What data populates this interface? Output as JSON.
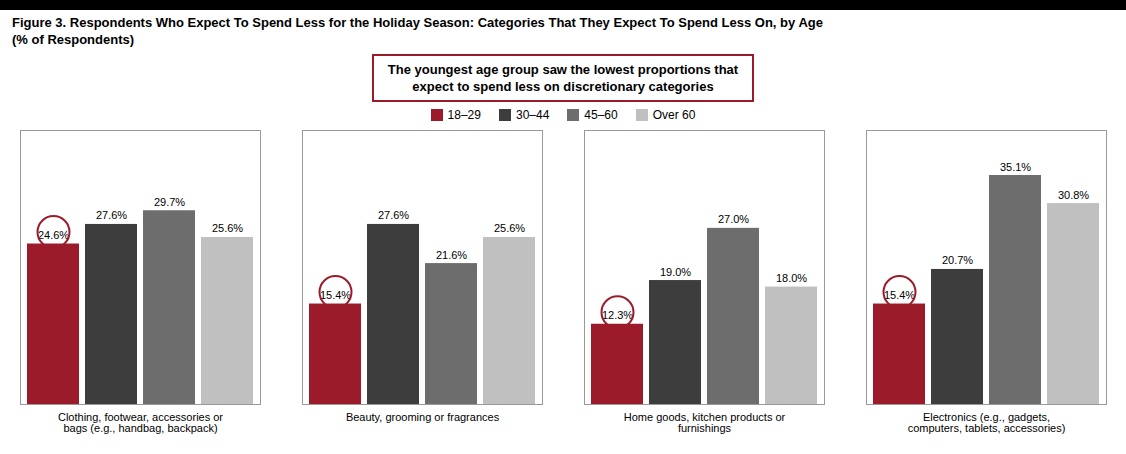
{
  "chart_data": {
    "type": "bar",
    "title": "Figure 3. Respondents Who Expect To Spend Less for the Holiday Season: Categories That They Expect To Spend Less On, by Age",
    "subtitle": "(% of Respondents)",
    "categories": [
      "Clothing, footwear, accessories or\nbags (e.g., handbag, backpack)",
      "Beauty, grooming or fragrances",
      "Home goods, kitchen products or\nfurnishings",
      "Electronics (e.g., gadgets,\ncomputers, tablets, accessories)"
    ],
    "series": [
      {
        "name": "18–29",
        "color": "#9B1B2A",
        "values": [
          24.6,
          15.4,
          12.3,
          15.4
        ],
        "value_labels": [
          "24.6%",
          "15.4%",
          "12.3%",
          "15.4%"
        ]
      },
      {
        "name": "30–44",
        "color": "#3D3D3D",
        "values": [
          27.6,
          27.6,
          19.0,
          20.7
        ],
        "value_labels": [
          "27.6%",
          "27.6%",
          "19.0%",
          "20.7%"
        ]
      },
      {
        "name": "45–60",
        "color": "#6D6D6D",
        "values": [
          29.7,
          21.6,
          27.0,
          35.1
        ],
        "value_labels": [
          "29.7%",
          "21.6%",
          "27.0%",
          "35.1%"
        ]
      },
      {
        "name": "Over 60",
        "color": "#C0C0C0",
        "values": [
          25.6,
          25.6,
          18.0,
          30.8
        ],
        "value_labels": [
          "25.6%",
          "25.6%",
          "18.0%",
          "30.8%"
        ]
      }
    ],
    "annotation": "The youngest age group saw the lowest proportions that\nexpect to spend less on discretionary categories",
    "ylim": [
      0,
      42
    ],
    "legend": "top",
    "data_labels": true,
    "tick_labels": "x",
    "grid": false
  }
}
